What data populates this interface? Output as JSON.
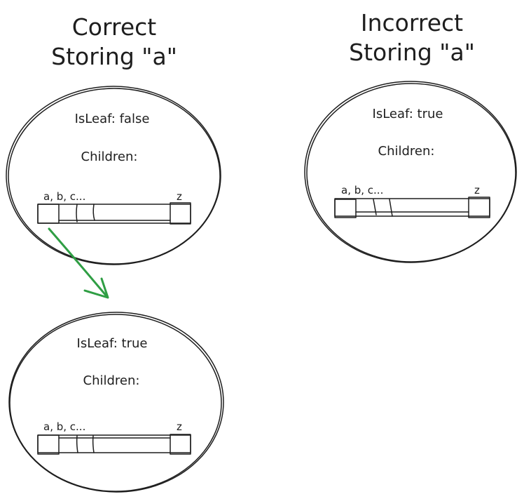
{
  "correct": {
    "title_line1": "Correct",
    "title_line2": "Storing \"a\"",
    "root_node": {
      "isleaf_label": "IsLeaf: false",
      "children_label": "Children:",
      "slot_letters": "a, b, c...",
      "last_slot_letter": "z"
    },
    "child_node": {
      "isleaf_label": "IsLeaf: true",
      "children_label": "Children:",
      "slot_letters": "a, b, c...",
      "last_slot_letter": "z"
    }
  },
  "incorrect": {
    "title_line1": "Incorrect",
    "title_line2": "Storing \"a\"",
    "root_node": {
      "isleaf_label": "IsLeaf: true",
      "children_label": "Children:",
      "slot_letters": "a, b, c...",
      "last_slot_letter": "z"
    }
  },
  "colors": {
    "ink": "#1e1e1e",
    "arrow": "#2f9e44"
  }
}
